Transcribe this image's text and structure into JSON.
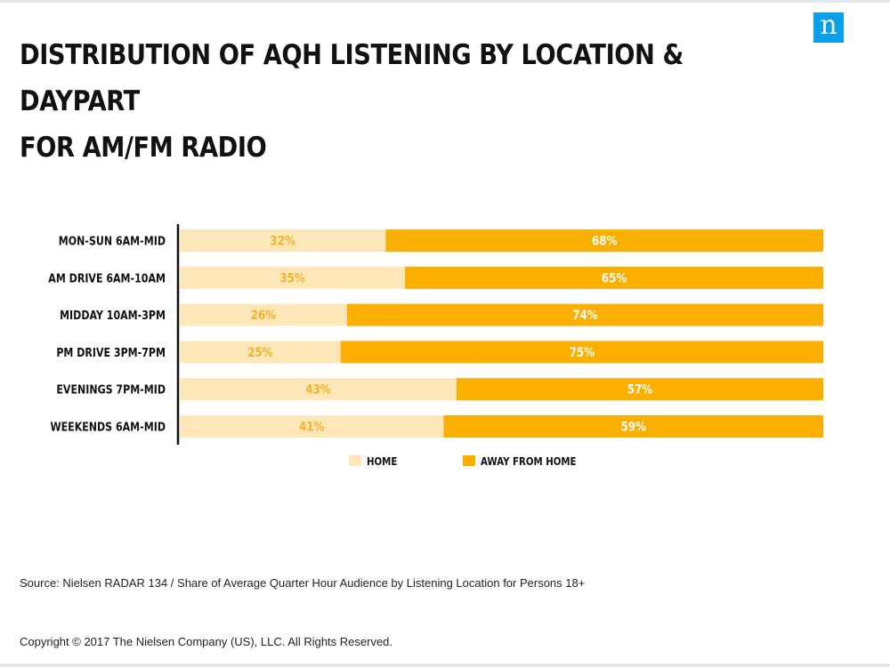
{
  "logo": {
    "text": "n",
    "color": "#0aa0e9"
  },
  "title_lines": [
    "DISTRIBUTION OF AQH LISTENING BY LOCATION & DAYPART",
    "FOR AM/FM RADIO"
  ],
  "chart_data": {
    "type": "bar",
    "orientation": "horizontal",
    "stacked": true,
    "categories": [
      "MON-SUN 6AM-MID",
      "AM DRIVE 6AM-10AM",
      "MIDDAY 10AM-3PM",
      "PM DRIVE 3PM-7PM",
      "EVENINGS 7PM-MID",
      "WEEKENDS 6AM-MID"
    ],
    "series": [
      {
        "name": "HOME",
        "values": [
          32,
          35,
          26,
          25,
          43,
          41
        ],
        "labels": [
          "32%",
          "35%",
          "26%",
          "25%",
          "43%",
          "41%"
        ],
        "color": "#fde6b7",
        "label_color": "#f5b324"
      },
      {
        "name": "AWAY FROM HOME",
        "values": [
          68,
          65,
          74,
          75,
          57,
          59
        ],
        "labels": [
          "68%",
          "65%",
          "74%",
          "75%",
          "57%",
          "59%"
        ],
        "color": "#fbb000",
        "label_color": "#ffffff"
      }
    ],
    "xlim": [
      0,
      100
    ],
    "grid": false,
    "legend_position": "bottom"
  },
  "source": "Source: Nielsen RADAR 134 / Share of Average Quarter Hour Audience by Listening Location for Persons 18+",
  "copyright": "Copyright © 2017 The Nielsen Company (US), LLC. All Rights Reserved."
}
